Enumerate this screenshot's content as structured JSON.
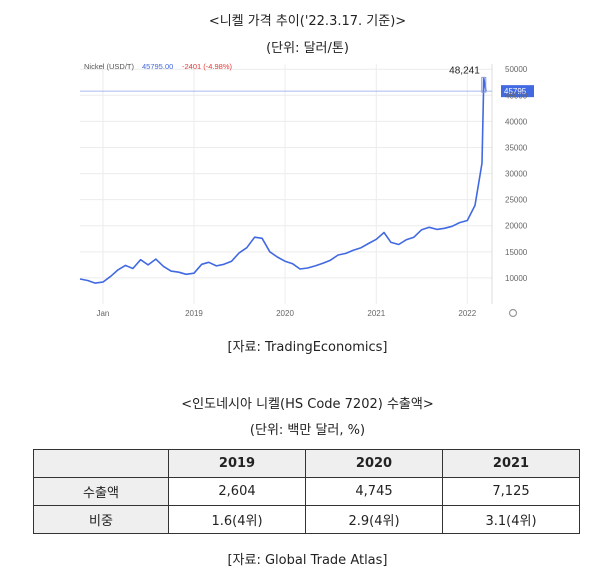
{
  "chart_title": "<니켈 가격 추이('22.3.17. 기준)>",
  "chart_unit": "(단위: 달러/톤)",
  "chart_source": "[자료: TradingEconomics]",
  "table_title": "<인도네시아 니켈(HS Code 7202) 수출액>",
  "table_unit": "(단위: 백만 달러, %)",
  "table_source": "[자료: Global Trade Atlas]",
  "table": {
    "headers": [
      "",
      "2019",
      "2020",
      "2021"
    ],
    "rows": [
      {
        "label": "수출액",
        "values": [
          "2,604",
          "4,745",
          "7,125"
        ]
      },
      {
        "label": "비중",
        "values": [
          "1.6(4위)",
          "2.9(4위)",
          "3.1(4위)"
        ]
      }
    ]
  },
  "chart_data": {
    "type": "line",
    "legend": {
      "name": "Nickel (USD/T)",
      "value": "45795.00",
      "change": "-2401 (-4.98%)"
    },
    "peak_label": "48,241",
    "last_label": "45795",
    "x_ticks": [
      "Jan",
      "2019",
      "2020",
      "2021",
      "2022"
    ],
    "y_ticks": [
      10000,
      15000,
      20000,
      25000,
      30000,
      35000,
      40000,
      45000,
      50000
    ],
    "ylim": [
      5000,
      51000
    ],
    "series": [
      {
        "name": "Nickel (USD/T)",
        "x": [
          "2017-10-01",
          "2017-11-01",
          "2017-12-01",
          "2018-01-01",
          "2018-02-01",
          "2018-03-01",
          "2018-04-01",
          "2018-05-01",
          "2018-06-01",
          "2018-07-01",
          "2018-08-01",
          "2018-09-01",
          "2018-10-01",
          "2018-11-01",
          "2018-12-01",
          "2019-01-01",
          "2019-02-01",
          "2019-03-01",
          "2019-04-01",
          "2019-05-01",
          "2019-06-01",
          "2019-07-01",
          "2019-08-01",
          "2019-09-01",
          "2019-10-01",
          "2019-11-01",
          "2019-12-01",
          "2020-01-01",
          "2020-02-01",
          "2020-03-01",
          "2020-04-01",
          "2020-05-01",
          "2020-06-01",
          "2020-07-01",
          "2020-08-01",
          "2020-09-01",
          "2020-10-01",
          "2020-11-01",
          "2020-12-01",
          "2021-01-01",
          "2021-02-01",
          "2021-03-01",
          "2021-04-01",
          "2021-05-01",
          "2021-06-01",
          "2021-07-01",
          "2021-08-01",
          "2021-09-01",
          "2021-10-01",
          "2021-11-01",
          "2021-12-01",
          "2022-01-01",
          "2022-02-01",
          "2022-03-01",
          "2022-03-08",
          "2022-03-17"
        ],
        "values": [
          9800,
          9500,
          9000,
          9200,
          10300,
          11500,
          12400,
          11800,
          13500,
          12500,
          13600,
          12200,
          11300,
          11100,
          10700,
          10900,
          12600,
          13000,
          12300,
          12600,
          13200,
          14800,
          15800,
          17800,
          17600,
          15000,
          14000,
          13200,
          12700,
          11700,
          11900,
          12300,
          12800,
          13400,
          14400,
          14700,
          15300,
          15800,
          16600,
          17400,
          18700,
          16800,
          16400,
          17300,
          17800,
          19200,
          19700,
          19300,
          19500,
          19900,
          20600,
          21000,
          23900,
          32000,
          48241,
          45795
        ]
      }
    ]
  }
}
